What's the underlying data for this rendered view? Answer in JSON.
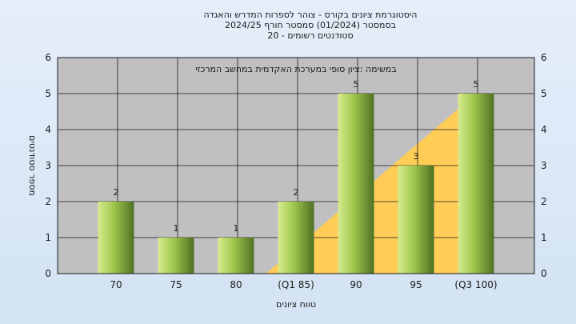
{
  "chart_data": {
    "type": "bar",
    "title_lines": [
      "היסטוגרמת ציונים בקורס - צוהר לספרות המדרש והאגדה",
      "בסמסטר  (01/2024)  סמסטר חורף 2024/25",
      "סטודנטים רשומים - 20"
    ],
    "annotation": "במשימה :ציון סופי במערכת האקדמית במחשב המרכזי",
    "xlabel": "טווח ציונים",
    "ylabel": "מספר סטודנטים",
    "categories": [
      "70",
      "75",
      "80",
      "(Q1 85)",
      "90",
      "95",
      "(Q3 100)"
    ],
    "values": [
      2,
      1,
      1,
      2,
      5,
      3,
      5
    ],
    "ylim": [
      0,
      6
    ],
    "yticks": [
      "0",
      "1",
      "2",
      "3",
      "4",
      "5",
      "6"
    ],
    "grid": true,
    "interquartile_band": {
      "from_category": "(Q1 85)",
      "to_category": "(Q3 100)"
    },
    "colors": {
      "plot_background": "#c0c0c0",
      "bar_light": "#d6ec8e",
      "bar_mid": "#9cc54a",
      "bar_dark": "#4e7025",
      "band": "#ffcd55",
      "grid": "#1a1a1a"
    }
  }
}
